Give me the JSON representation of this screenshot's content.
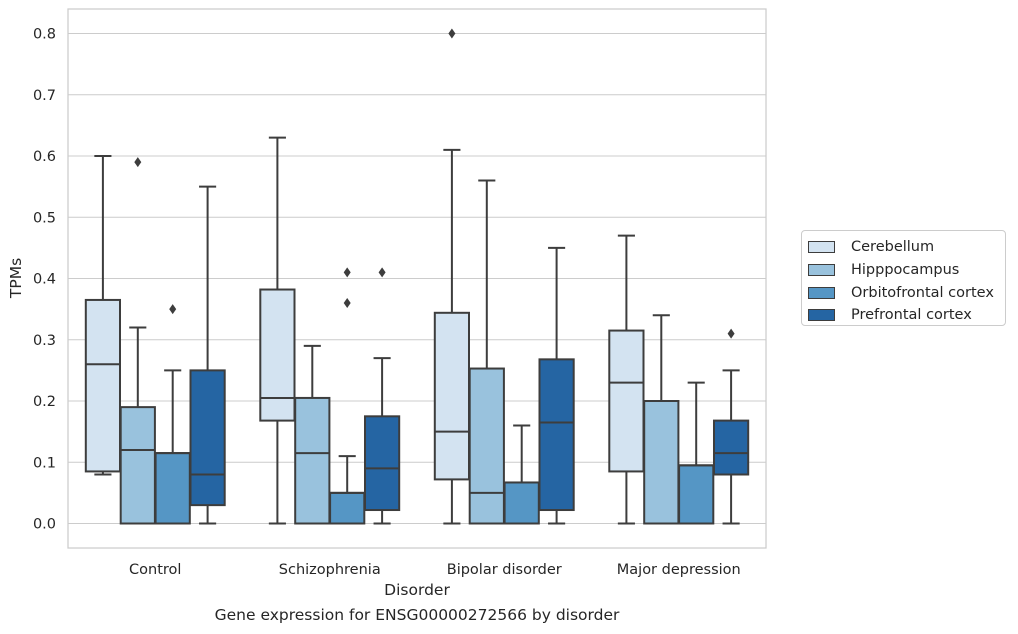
{
  "caption": "Gene expression for ENSG00000272566 by disorder",
  "chart_data": {
    "type": "boxplot",
    "xlabel": "Disorder",
    "ylabel": "TPMs",
    "ylim": [
      -0.04,
      0.84
    ],
    "yticks": [
      "0.0",
      "0.1",
      "0.2",
      "0.3",
      "0.4",
      "0.5",
      "0.6",
      "0.7",
      "0.8"
    ],
    "categories": [
      "Control",
      "Schizophrenia",
      "Bipolar disorder",
      "Major depression"
    ],
    "grid": true,
    "legend_position": "right",
    "series": [
      {
        "name": "Cerebellum",
        "color": "#d3e3f1",
        "boxes": [
          {
            "whislo": 0.08,
            "q1": 0.085,
            "med": 0.26,
            "q3": 0.365,
            "whishi": 0.6,
            "fliers": []
          },
          {
            "whislo": 0.0,
            "q1": 0.168,
            "med": 0.205,
            "q3": 0.382,
            "whishi": 0.63,
            "fliers": []
          },
          {
            "whislo": 0.0,
            "q1": 0.072,
            "med": 0.15,
            "q3": 0.344,
            "whishi": 0.61,
            "fliers": [
              0.8
            ]
          },
          {
            "whislo": 0.0,
            "q1": 0.085,
            "med": 0.23,
            "q3": 0.315,
            "whishi": 0.47,
            "fliers": []
          }
        ]
      },
      {
        "name": "Hipppocampus",
        "color": "#99c2dd",
        "boxes": [
          {
            "whislo": 0.0,
            "q1": 0.0,
            "med": 0.12,
            "q3": 0.19,
            "whishi": 0.32,
            "fliers": [
              0.59
            ]
          },
          {
            "whislo": 0.0,
            "q1": 0.0,
            "med": 0.115,
            "q3": 0.205,
            "whishi": 0.29,
            "fliers": []
          },
          {
            "whislo": 0.0,
            "q1": 0.0,
            "med": 0.05,
            "q3": 0.253,
            "whishi": 0.56,
            "fliers": []
          },
          {
            "whislo": 0.0,
            "q1": 0.0,
            "med": 0.2,
            "q3": 0.2,
            "whishi": 0.34,
            "fliers": []
          }
        ]
      },
      {
        "name": "Orbitofrontal cortex",
        "color": "#5596c5",
        "boxes": [
          {
            "whislo": 0.0,
            "q1": 0.0,
            "med": 0.115,
            "q3": 0.115,
            "whishi": 0.25,
            "fliers": [
              0.35
            ]
          },
          {
            "whislo": 0.0,
            "q1": 0.0,
            "med": 0.05,
            "q3": 0.05,
            "whishi": 0.11,
            "fliers": [
              0.36,
              0.41
            ]
          },
          {
            "whislo": 0.0,
            "q1": 0.0,
            "med": 0.067,
            "q3": 0.067,
            "whishi": 0.16,
            "fliers": []
          },
          {
            "whislo": 0.0,
            "q1": 0.0,
            "med": 0.095,
            "q3": 0.095,
            "whishi": 0.23,
            "fliers": []
          }
        ]
      },
      {
        "name": "Prefrontal cortex",
        "color": "#2565a3",
        "boxes": [
          {
            "whislo": 0.0,
            "q1": 0.03,
            "med": 0.08,
            "q3": 0.25,
            "whishi": 0.55,
            "fliers": []
          },
          {
            "whislo": 0.0,
            "q1": 0.022,
            "med": 0.09,
            "q3": 0.175,
            "whishi": 0.27,
            "fliers": [
              0.41
            ]
          },
          {
            "whislo": 0.0,
            "q1": 0.022,
            "med": 0.165,
            "q3": 0.268,
            "whishi": 0.45,
            "fliers": []
          },
          {
            "whislo": 0.0,
            "q1": 0.08,
            "med": 0.115,
            "q3": 0.168,
            "whishi": 0.25,
            "fliers": [
              0.31
            ]
          }
        ]
      }
    ]
  }
}
